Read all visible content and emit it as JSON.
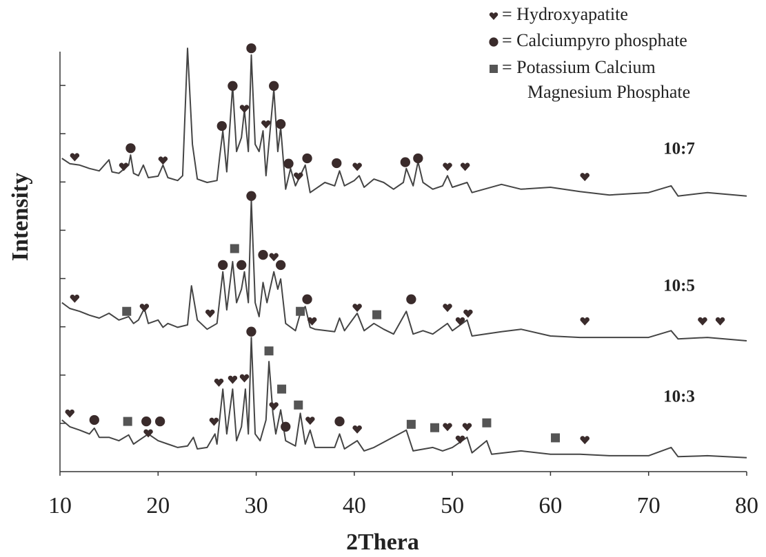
{
  "chart_data": {
    "type": "line",
    "xlabel": "2Thera",
    "ylabel": "Intensity",
    "xlim": [
      10,
      80
    ],
    "xticks": [
      10,
      20,
      30,
      40,
      50,
      60,
      70,
      80
    ],
    "ylim": [
      0,
      8.8
    ],
    "yticks": [
      1,
      2,
      3,
      4,
      5,
      6,
      7,
      8
    ],
    "line_color": "#444444",
    "marker_color": "#3a2b2b",
    "series": [
      {
        "name": "10:7",
        "x": [
          10.2,
          11,
          12,
          13,
          14,
          15,
          15.3,
          16,
          17,
          17.2,
          17.5,
          18,
          18.5,
          19,
          20,
          20.5,
          21,
          22,
          22.5,
          23,
          23.5,
          24,
          25,
          26,
          26.3,
          26.6,
          27,
          27.6,
          28,
          28.5,
          28.8,
          29.2,
          29.5,
          29.9,
          30.3,
          30.7,
          31,
          31.8,
          32.2,
          32.5,
          33,
          33.5,
          34,
          35,
          35.5,
          36,
          37,
          38,
          38.5,
          39,
          40,
          40.5,
          41,
          42,
          43,
          44,
          45,
          45.3,
          46,
          46.5,
          47,
          48,
          49,
          49.5,
          50,
          51.5,
          52,
          55,
          57,
          60,
          63,
          66,
          70,
          72.3,
          73,
          76,
          80
        ],
        "values": [
          6.49,
          6.38,
          6.35,
          6.28,
          6.23,
          6.46,
          6.21,
          6.18,
          6.35,
          6.56,
          6.18,
          6.13,
          6.35,
          6.09,
          6.12,
          6.35,
          6.09,
          6.03,
          6.13,
          8.77,
          6.78,
          6.06,
          5.99,
          6.03,
          6.56,
          7.06,
          6.21,
          7.99,
          6.63,
          6.92,
          7.49,
          6.63,
          8.63,
          6.78,
          6.63,
          7.06,
          6.13,
          7.92,
          6.63,
          7.13,
          5.85,
          6.28,
          5.92,
          6.35,
          5.78,
          5.85,
          5.99,
          5.92,
          6.23,
          5.92,
          6.03,
          6.13,
          5.89,
          6.06,
          5.99,
          5.85,
          5.99,
          6.28,
          5.92,
          6.42,
          5.99,
          5.85,
          5.92,
          6.13,
          5.89,
          5.99,
          5.78,
          5.95,
          5.85,
          5.89,
          5.8,
          5.73,
          5.78,
          5.92,
          5.71,
          5.78,
          5.71
        ]
      },
      {
        "name": "10:5",
        "x": [
          10.2,
          11,
          12,
          13,
          14,
          15,
          16,
          17,
          17.5,
          18,
          18.6,
          19,
          20,
          20.5,
          21,
          22,
          23,
          23.4,
          24,
          25,
          26,
          26.6,
          27,
          27.6,
          28,
          28.5,
          28.8,
          29.2,
          29.5,
          29.9,
          30.3,
          30.7,
          31.1,
          31.8,
          32.2,
          32.5,
          33,
          34,
          34.5,
          35,
          35.5,
          36,
          38,
          38.5,
          39,
          40.3,
          41,
          42,
          43,
          44,
          45.3,
          46,
          47,
          48,
          49.5,
          50,
          51.5,
          52,
          55,
          57,
          60,
          63,
          66,
          70,
          72.3,
          73,
          76,
          80
        ],
        "values": [
          3.5,
          3.38,
          3.32,
          3.24,
          3.18,
          3.28,
          3.14,
          3.21,
          3.07,
          3.14,
          3.38,
          3.07,
          3.14,
          2.99,
          3.07,
          2.99,
          3.04,
          3.85,
          3.14,
          2.95,
          3.07,
          4.14,
          3.35,
          4.35,
          3.5,
          3.78,
          4.14,
          3.5,
          5.63,
          3.5,
          3.21,
          3.92,
          3.5,
          4.14,
          3.78,
          3.99,
          3.07,
          2.92,
          3.28,
          3.42,
          2.99,
          2.95,
          2.9,
          3.18,
          2.92,
          3.28,
          2.92,
          3.07,
          2.95,
          2.85,
          3.32,
          2.85,
          2.92,
          2.85,
          3.07,
          2.92,
          3.14,
          2.81,
          2.9,
          2.95,
          2.81,
          2.78,
          2.78,
          2.78,
          2.92,
          2.75,
          2.78,
          2.71
        ]
      },
      {
        "name": "10:3",
        "x": [
          10.2,
          11,
          12,
          13,
          13.5,
          14,
          15,
          16,
          17,
          17.5,
          18,
          19,
          20,
          21,
          22,
          23,
          23.6,
          24,
          25,
          25.8,
          26,
          26.6,
          27,
          27.6,
          28,
          28.5,
          28.9,
          29.2,
          29.5,
          29.9,
          30.4,
          31,
          31.3,
          31.7,
          32,
          32.5,
          33,
          34,
          34.5,
          35,
          35.5,
          36,
          38,
          38.5,
          39,
          40.3,
          41,
          42,
          45.3,
          46,
          48,
          49,
          50,
          51.5,
          52,
          53.5,
          54,
          57,
          60,
          63,
          66,
          70,
          72.3,
          73,
          76,
          80
        ],
        "values": [
          1.07,
          0.93,
          0.86,
          0.78,
          0.9,
          0.71,
          0.71,
          0.64,
          0.76,
          0.57,
          0.64,
          0.78,
          0.64,
          0.57,
          0.5,
          0.53,
          0.71,
          0.47,
          0.5,
          0.78,
          0.57,
          1.71,
          0.78,
          1.71,
          0.64,
          0.93,
          1.71,
          0.78,
          2.78,
          0.78,
          0.64,
          1.07,
          2.28,
          1.21,
          0.78,
          1.28,
          0.64,
          0.53,
          1.21,
          0.57,
          0.86,
          0.5,
          0.5,
          0.78,
          0.47,
          0.64,
          0.43,
          0.5,
          0.86,
          0.43,
          0.5,
          0.43,
          0.5,
          0.71,
          0.39,
          0.64,
          0.36,
          0.43,
          0.36,
          0.36,
          0.33,
          0.33,
          0.5,
          0.31,
          0.33,
          0.29
        ]
      }
    ],
    "legend": [
      {
        "shape": "heart",
        "label": [
          "= Hydroxyapatite"
        ],
        "points": [
          [
            11.5,
            6.52
          ],
          [
            16.5,
            6.32
          ],
          [
            20.5,
            6.45
          ],
          [
            28.8,
            7.52
          ],
          [
            31,
            7.2
          ],
          [
            34.3,
            6.12
          ],
          [
            40.3,
            6.32
          ],
          [
            49.5,
            6.32
          ],
          [
            51.3,
            6.32
          ],
          [
            63.5,
            6.11
          ],
          [
            11.5,
            3.59
          ],
          [
            18.6,
            3.4
          ],
          [
            25.3,
            3.28
          ],
          [
            31.8,
            4.45
          ],
          [
            35.7,
            3.12
          ],
          [
            40.3,
            3.4
          ],
          [
            49.5,
            3.4
          ],
          [
            50.8,
            3.12
          ],
          [
            51.6,
            3.28
          ],
          [
            63.5,
            3.12
          ],
          [
            75.5,
            3.12
          ],
          [
            77.3,
            3.12
          ],
          [
            11,
            1.21
          ],
          [
            19,
            0.8
          ],
          [
            25.7,
            1.04
          ],
          [
            26.2,
            1.85
          ],
          [
            27.6,
            1.91
          ],
          [
            28.8,
            1.94
          ],
          [
            31.8,
            1.36
          ],
          [
            35.5,
            1.06
          ],
          [
            40.3,
            0.88
          ],
          [
            49.5,
            0.93
          ],
          [
            50.8,
            0.67
          ],
          [
            51.5,
            0.93
          ],
          [
            63.5,
            0.66
          ]
        ]
      },
      {
        "shape": "circle",
        "label": [
          "= Calciumpyro phosphate"
        ],
        "points": [
          [
            17.2,
            6.7
          ],
          [
            26.5,
            7.16
          ],
          [
            27.6,
            7.99
          ],
          [
            29.5,
            8.77
          ],
          [
            31.8,
            7.99
          ],
          [
            32.5,
            7.2
          ],
          [
            33.3,
            6.38
          ],
          [
            35.2,
            6.49
          ],
          [
            38.2,
            6.39
          ],
          [
            45.2,
            6.41
          ],
          [
            46.5,
            6.49
          ],
          [
            26.6,
            4.28
          ],
          [
            28.5,
            4.28
          ],
          [
            29.5,
            5.71
          ],
          [
            30.7,
            4.49
          ],
          [
            32.5,
            4.28
          ],
          [
            35.2,
            3.57
          ],
          [
            45.8,
            3.57
          ],
          [
            13.5,
            1.07
          ],
          [
            18.8,
            1.04
          ],
          [
            20.2,
            1.04
          ],
          [
            29.5,
            2.9
          ],
          [
            33,
            0.93
          ],
          [
            38.5,
            1.04
          ]
        ]
      },
      {
        "shape": "square",
        "label": [
          "= Potassium Calcium",
          "Magnesium Phosphate"
        ],
        "points": [
          [
            27.8,
            4.62
          ],
          [
            16.8,
            3.32
          ],
          [
            34.5,
            3.32
          ],
          [
            42.3,
            3.25
          ],
          [
            31.3,
            2.5
          ],
          [
            32.6,
            1.71
          ],
          [
            34.3,
            1.38
          ],
          [
            16.9,
            1.04
          ],
          [
            45.8,
            0.98
          ],
          [
            48.2,
            0.91
          ],
          [
            53.5,
            1.01
          ],
          [
            60.5,
            0.7
          ]
        ]
      }
    ]
  }
}
